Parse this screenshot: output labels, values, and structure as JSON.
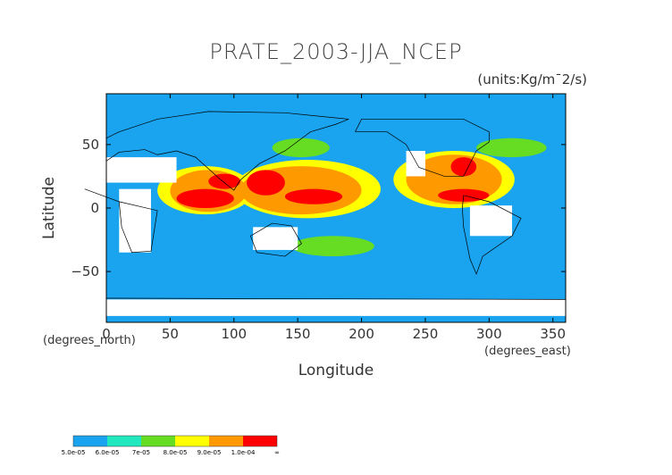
{
  "chart_data": {
    "type": "heatmap",
    "title": "PRATE_2003-JJA_NCEP",
    "units": "(units:Kg/m¯2/s)",
    "xlabel": "Longitude",
    "ylabel": "Latitude",
    "x_units": "(degrees_east)",
    "y_units": "(degrees_north)",
    "xlim": [
      0,
      360
    ],
    "ylim": [
      -90,
      90
    ],
    "x_ticks": [
      0,
      50,
      100,
      150,
      200,
      250,
      300,
      350
    ],
    "x_tick_labels": [
      "0",
      "50",
      "100",
      "150",
      "200",
      "250",
      "300",
      "350"
    ],
    "y_ticks": [
      50,
      0,
      -50
    ],
    "y_tick_labels": [
      "50",
      "0",
      "−50"
    ],
    "colorbar": {
      "boundaries": [
        "5.0e-05",
        "6.0e-05",
        "7e-05",
        "8.0e-05",
        "9.0e-05",
        "1.0e-04",
        "∞"
      ],
      "colors": [
        "#1aa3ee",
        "#22e8c0",
        "#66dd22",
        "#ffff00",
        "#ff9900",
        "#ff0000"
      ]
    },
    "background_color": "#1aa3ee",
    "missing_color": "#ffffff",
    "regions": [
      {
        "level": 5,
        "lon": [
          55,
          100
        ],
        "lat": [
          0,
          15
        ]
      },
      {
        "level": 5,
        "lon": [
          80,
          105
        ],
        "lat": [
          15,
          27
        ]
      },
      {
        "level": 5,
        "lon": [
          110,
          140
        ],
        "lat": [
          10,
          30
        ]
      },
      {
        "level": 5,
        "lon": [
          140,
          185
        ],
        "lat": [
          3,
          15
        ]
      },
      {
        "level": 5,
        "lon": [
          260,
          300
        ],
        "lat": [
          5,
          15
        ]
      },
      {
        "level": 5,
        "lon": [
          270,
          290
        ],
        "lat": [
          25,
          40
        ]
      },
      {
        "level": 4,
        "lon": [
          50,
          110
        ],
        "lat": [
          -3,
          30
        ]
      },
      {
        "level": 4,
        "lon": [
          105,
          200
        ],
        "lat": [
          -5,
          33
        ]
      },
      {
        "level": 4,
        "lon": [
          235,
          310
        ],
        "lat": [
          3,
          42
        ]
      },
      {
        "level": 3,
        "lon": [
          40,
          115
        ],
        "lat": [
          -5,
          33
        ]
      },
      {
        "level": 3,
        "lon": [
          100,
          215
        ],
        "lat": [
          -8,
          38
        ]
      },
      {
        "level": 3,
        "lon": [
          225,
          320
        ],
        "lat": [
          0,
          45
        ]
      },
      {
        "level": 2,
        "lon": [
          130,
          175
        ],
        "lat": [
          40,
          55
        ]
      },
      {
        "level": 2,
        "lon": [
          290,
          345
        ],
        "lat": [
          40,
          55
        ]
      },
      {
        "level": 2,
        "lon": [
          145,
          210
        ],
        "lat": [
          -38,
          -22
        ]
      }
    ],
    "missing_regions": [
      {
        "lon": [
          0,
          55
        ],
        "lat": [
          20,
          40
        ]
      },
      {
        "lon": [
          10,
          35
        ],
        "lat": [
          -35,
          15
        ]
      },
      {
        "lon": [
          115,
          150
        ],
        "lat": [
          -33,
          -15
        ]
      },
      {
        "lon": [
          235,
          250
        ],
        "lat": [
          25,
          45
        ]
      },
      {
        "lon": [
          285,
          318
        ],
        "lat": [
          -22,
          2
        ]
      },
      {
        "lon": [
          0,
          360
        ],
        "lat": [
          -85,
          -72
        ]
      }
    ]
  }
}
